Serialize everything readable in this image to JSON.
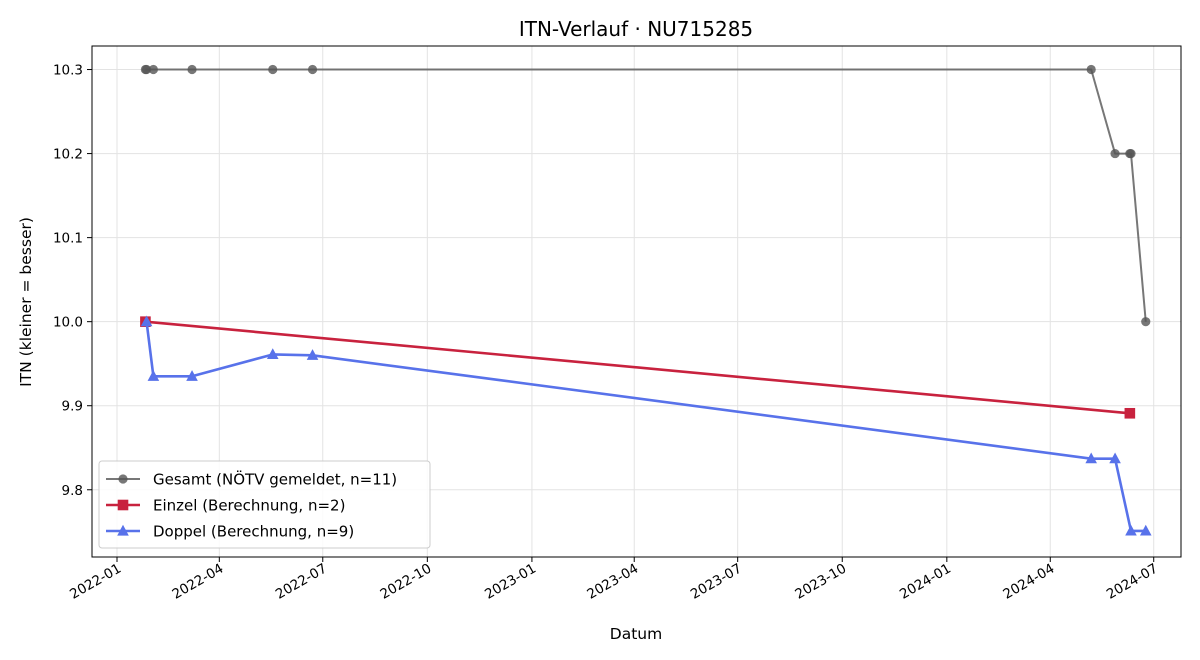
{
  "chart_data": {
    "type": "line",
    "title": "ITN-Verlauf · NU715285",
    "xlabel": "Datum",
    "ylabel": "ITN  (kleiner = besser)",
    "x_ticks": [
      "2022-01",
      "2022-04",
      "2022-07",
      "2022-10",
      "2023-01",
      "2023-04",
      "2023-07",
      "2023-10",
      "2024-01",
      "2024-04",
      "2024-07"
    ],
    "y_ticks": [
      "9.8",
      "9.9",
      "10.0",
      "10.1",
      "10.2",
      "10.3"
    ],
    "xlim": [
      "2021-12-10",
      "2024-07-25"
    ],
    "ylim": [
      9.72,
      10.328
    ],
    "grid": true,
    "legend_position": "lower-left",
    "series": [
      {
        "name": "Gesamt (NÖTV gemeldet, n=11)",
        "color": "#555555",
        "marker": "circle",
        "x": [
          "2022-01-26",
          "2022-01-27",
          "2022-02-02",
          "2022-03-08",
          "2022-05-18",
          "2022-06-22",
          "2024-05-07",
          "2024-05-28",
          "2024-06-10",
          "2024-06-11",
          "2024-06-24"
        ],
        "y": [
          10.3,
          10.3,
          10.3,
          10.3,
          10.3,
          10.3,
          10.3,
          10.2,
          10.2,
          10.2,
          10.0
        ]
      },
      {
        "name": "Einzel (Berechnung, n=2)",
        "color": "#c8223e",
        "marker": "square",
        "x": [
          "2022-01-26",
          "2024-06-10"
        ],
        "y": [
          10.0,
          9.891
        ]
      },
      {
        "name": "Doppel (Berechnung, n=9)",
        "color": "#5872ea",
        "marker": "triangle",
        "x": [
          "2022-01-27",
          "2022-02-02",
          "2022-03-08",
          "2022-05-18",
          "2022-06-22",
          "2024-05-07",
          "2024-05-28",
          "2024-06-11",
          "2024-06-24"
        ],
        "y": [
          10.0,
          9.935,
          9.935,
          9.961,
          9.96,
          9.837,
          9.837,
          9.751,
          9.751
        ]
      }
    ]
  }
}
